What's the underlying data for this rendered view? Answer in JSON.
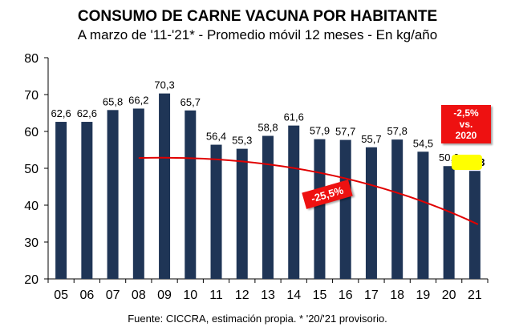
{
  "header": {
    "title": "CONSUMO DE CARNE VACUNA POR HABITANTE",
    "subtitle": "A marzo de '11-'21* - Promedio móvil 12 meses -  En kg/año"
  },
  "footer": {
    "source": "Fuente: CICCRA, estimación propia. * '20/'21 provisorio."
  },
  "colors": {
    "bar": "#1f3556",
    "trend": "#e00000",
    "callout": "#ee1111",
    "highlight": "#ffff00"
  },
  "annotations": {
    "change_vs_2020": [
      "-2,5%",
      "vs.",
      "2020"
    ],
    "trend_change": "-25,5%"
  },
  "chart_data": {
    "type": "bar",
    "categories": [
      "05",
      "06",
      "07",
      "08",
      "09",
      "10",
      "11",
      "12",
      "13",
      "14",
      "15",
      "16",
      "17",
      "18",
      "19",
      "20",
      "21"
    ],
    "values": [
      62.6,
      62.6,
      65.8,
      66.2,
      70.3,
      65.7,
      56.4,
      55.3,
      58.8,
      61.6,
      57.9,
      57.7,
      55.7,
      57.8,
      54.5,
      50.6,
      49.3
    ],
    "value_labels": [
      "62,6",
      "62,6",
      "65,8",
      "66,2",
      "70,3",
      "65,7",
      "56,4",
      "55,3",
      "58,8",
      "61,6",
      "57,9",
      "57,7",
      "55,7",
      "57,8",
      "54,5",
      "50,6",
      "49,3"
    ],
    "ylim": [
      20,
      80
    ],
    "yticks": [
      20,
      30,
      40,
      50,
      60,
      70,
      80
    ],
    "trend_line": {
      "from_category": "08",
      "to_category": "21",
      "from_value": 52.8,
      "to_value": 34.8
    },
    "grid": false,
    "legend": "none"
  }
}
